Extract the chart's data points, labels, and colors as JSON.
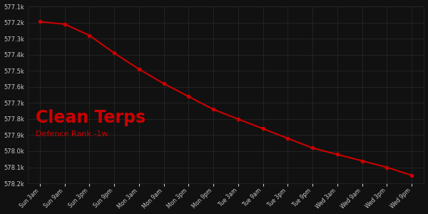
{
  "title": "Clean Terps",
  "subtitle": "Defence Rank -1w",
  "background_color": "#111111",
  "line_color": "#cc0000",
  "text_color": "#cccccc",
  "title_color": "#cc0000",
  "subtitle_color": "#cc0000",
  "x_labels": [
    "Sun 3am",
    "Sun 9am",
    "Sun 3pm",
    "Sun 9pm",
    "Mon 3am",
    "Mon 9am",
    "Mon 3pm",
    "Mon 9pm",
    "Tue 3am",
    "Tue 9am",
    "Tue 3pm",
    "Tue 9pm",
    "Wed 3am",
    "Wed 9am",
    "Wed 3pm",
    "Wed 9pm"
  ],
  "x_values": [
    0,
    1,
    2,
    3,
    4,
    5,
    6,
    7,
    8,
    9,
    10,
    11,
    12,
    13,
    14,
    15
  ],
  "y_values": [
    577195,
    577210,
    577280,
    577390,
    577490,
    577580,
    577660,
    577740,
    577800,
    577860,
    577920,
    577980,
    578020,
    578060,
    578100,
    578150
  ],
  "ylim_min": 577100,
  "ylim_max": 578200,
  "yticks": [
    577100,
    577200,
    577300,
    577400,
    577500,
    577600,
    577700,
    577800,
    577900,
    578000,
    578100,
    578200
  ],
  "grid_color": "#2a2a2a",
  "marker_size": 3,
  "line_width": 1.5,
  "figwidth": 6.0,
  "figheight": 3.0,
  "dpi": 100
}
